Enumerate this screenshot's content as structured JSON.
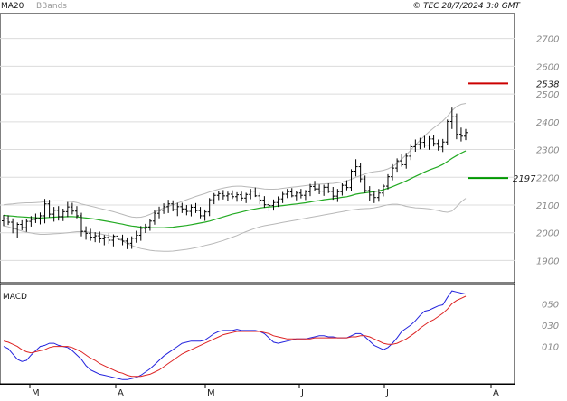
{
  "header": {
    "legend_ma": "MA20",
    "legend_bb": "BBands",
    "copyright": "© TEC 28/7/2024 3:0 GMT",
    "macd_label": "MACD"
  },
  "colors": {
    "ma20": "#22aa22",
    "bbands": "#b8b8b8",
    "resistance": "#cc0000",
    "support": "#009900",
    "candles": "#000000",
    "macd": "#2222dd",
    "signal": "#dd2222"
  },
  "chart_data": [
    {
      "type": "line",
      "title": "",
      "y_ticks": [
        1900,
        2000,
        2100,
        2200,
        2300,
        2400,
        2500,
        2600,
        2700
      ],
      "y_range": [
        1820,
        2790
      ],
      "x_labels": [
        "M",
        "A",
        "M",
        "J",
        "J",
        "A"
      ],
      "grid": true,
      "candles": [
        [
          2043,
          2064,
          2024,
          2050
        ],
        [
          2050,
          2063,
          2028,
          2038
        ],
        [
          2038,
          2052,
          1998,
          2016
        ],
        [
          2016,
          2037,
          1982,
          2030
        ],
        [
          2030,
          2045,
          2009,
          2018
        ],
        [
          2018,
          2048,
          2003,
          2041
        ],
        [
          2041,
          2060,
          2022,
          2048
        ],
        [
          2048,
          2069,
          2035,
          2052
        ],
        [
          2052,
          2073,
          2030,
          2061
        ],
        [
          2061,
          2122,
          2034,
          2104
        ],
        [
          2104,
          2119,
          2055,
          2067
        ],
        [
          2067,
          2093,
          2040,
          2081
        ],
        [
          2081,
          2096,
          2044,
          2058
        ],
        [
          2058,
          2087,
          2042,
          2076
        ],
        [
          2076,
          2111,
          2056,
          2093
        ],
        [
          2093,
          2108,
          2066,
          2078
        ],
        [
          2078,
          2096,
          2052,
          2061
        ],
        [
          2061,
          2072,
          1987,
          2005
        ],
        [
          2005,
          2023,
          1975,
          1998
        ],
        [
          1998,
          2014,
          1971,
          1984
        ],
        [
          1984,
          2002,
          1966,
          1989
        ],
        [
          1989,
          2004,
          1964,
          1978
        ],
        [
          1978,
          1992,
          1955,
          1983
        ],
        [
          1983,
          1999,
          1960,
          1973
        ],
        [
          1973,
          1994,
          1951,
          1988
        ],
        [
          1988,
          2010,
          1968,
          1976
        ],
        [
          1976,
          1993,
          1955,
          1970
        ],
        [
          1970,
          1983,
          1941,
          1962
        ],
        [
          1962,
          1987,
          1942,
          1980
        ],
        [
          1980,
          2007,
          1964,
          1991
        ],
        [
          1991,
          2024,
          1971,
          2016
        ],
        [
          2016,
          2032,
          1999,
          2021
        ],
        [
          2021,
          2049,
          2007,
          2042
        ],
        [
          2042,
          2083,
          2029,
          2070
        ],
        [
          2070,
          2094,
          2052,
          2081
        ],
        [
          2081,
          2106,
          2068,
          2094
        ],
        [
          2094,
          2119,
          2071,
          2104
        ],
        [
          2104,
          2117,
          2077,
          2083
        ],
        [
          2083,
          2108,
          2060,
          2094
        ],
        [
          2094,
          2108,
          2071,
          2086
        ],
        [
          2086,
          2100,
          2063,
          2077
        ],
        [
          2077,
          2102,
          2059,
          2092
        ],
        [
          2092,
          2107,
          2071,
          2080
        ],
        [
          2080,
          2093,
          2052,
          2061
        ],
        [
          2061,
          2084,
          2043,
          2075
        ],
        [
          2075,
          2125,
          2060,
          2119
        ],
        [
          2119,
          2143,
          2103,
          2135
        ],
        [
          2135,
          2152,
          2118,
          2141
        ],
        [
          2141,
          2154,
          2120,
          2133
        ],
        [
          2133,
          2148,
          2115,
          2139
        ],
        [
          2139,
          2153,
          2122,
          2130
        ],
        [
          2130,
          2146,
          2112,
          2137
        ],
        [
          2137,
          2148,
          2114,
          2125
        ],
        [
          2125,
          2144,
          2107,
          2138
        ],
        [
          2138,
          2158,
          2121,
          2150
        ],
        [
          2150,
          2163,
          2129,
          2133
        ],
        [
          2133,
          2144,
          2103,
          2118
        ],
        [
          2118,
          2132,
          2090,
          2101
        ],
        [
          2101,
          2114,
          2077,
          2098
        ],
        [
          2098,
          2120,
          2080,
          2109
        ],
        [
          2109,
          2131,
          2093,
          2122
        ],
        [
          2122,
          2147,
          2107,
          2139
        ],
        [
          2139,
          2158,
          2125,
          2147
        ],
        [
          2147,
          2161,
          2128,
          2133
        ],
        [
          2133,
          2152,
          2117,
          2143
        ],
        [
          2143,
          2158,
          2124,
          2135
        ],
        [
          2135,
          2154,
          2118,
          2148
        ],
        [
          2148,
          2176,
          2132,
          2167
        ],
        [
          2167,
          2187,
          2150,
          2158
        ],
        [
          2158,
          2174,
          2139,
          2150
        ],
        [
          2150,
          2173,
          2133,
          2164
        ],
        [
          2164,
          2178,
          2143,
          2149
        ],
        [
          2149,
          2165,
          2119,
          2132
        ],
        [
          2132,
          2158,
          2111,
          2148
        ],
        [
          2148,
          2178,
          2134,
          2171
        ],
        [
          2171,
          2189,
          2153,
          2163
        ],
        [
          2163,
          2229,
          2152,
          2222
        ],
        [
          2222,
          2265,
          2203,
          2238
        ],
        [
          2238,
          2252,
          2180,
          2194
        ],
        [
          2194,
          2206,
          2143,
          2152
        ],
        [
          2152,
          2168,
          2114,
          2136
        ],
        [
          2136,
          2151,
          2107,
          2127
        ],
        [
          2127,
          2158,
          2112,
          2143
        ],
        [
          2143,
          2175,
          2131,
          2168
        ],
        [
          2168,
          2211,
          2156,
          2202
        ],
        [
          2202,
          2247,
          2189,
          2233
        ],
        [
          2233,
          2268,
          2220,
          2259
        ],
        [
          2259,
          2283,
          2238,
          2245
        ],
        [
          2245,
          2288,
          2231,
          2276
        ],
        [
          2276,
          2320,
          2262,
          2310
        ],
        [
          2310,
          2336,
          2292,
          2318
        ],
        [
          2318,
          2342,
          2301,
          2326
        ],
        [
          2326,
          2349,
          2306,
          2316
        ],
        [
          2316,
          2348,
          2299,
          2338
        ],
        [
          2338,
          2351,
          2311,
          2322
        ],
        [
          2322,
          2336,
          2296,
          2309
        ],
        [
          2309,
          2338,
          2291,
          2327
        ],
        [
          2327,
          2408,
          2318,
          2401
        ],
        [
          2401,
          2451,
          2374,
          2418
        ],
        [
          2418,
          2430,
          2337,
          2355
        ],
        [
          2355,
          2379,
          2329,
          2348
        ],
        [
          2348,
          2374,
          2334,
          2361
        ]
      ],
      "ma20": [
        2063,
        2061,
        2060,
        2058,
        2057,
        2056,
        2055,
        2054,
        2053,
        2054,
        2055,
        2056,
        2057,
        2057,
        2058,
        2058,
        2057,
        2055,
        2053,
        2051,
        2049,
        2046,
        2043,
        2040,
        2037,
        2034,
        2031,
        2027,
        2024,
        2022,
        2020,
        2019,
        2018,
        2018,
        2018,
        2018,
        2019,
        2020,
        2022,
        2024,
        2026,
        2029,
        2032,
        2035,
        2038,
        2042,
        2047,
        2052,
        2057,
        2062,
        2067,
        2071,
        2075,
        2079,
        2083,
        2086,
        2089,
        2091,
        2093,
        2094,
        2096,
        2098,
        2100,
        2102,
        2104,
        2106,
        2108,
        2111,
        2114,
        2116,
        2119,
        2121,
        2123,
        2125,
        2128,
        2130,
        2134,
        2139,
        2142,
        2144,
        2146,
        2148,
        2151,
        2155,
        2160,
        2166,
        2173,
        2180,
        2187,
        2195,
        2203,
        2211,
        2219,
        2226,
        2232,
        2238,
        2246,
        2257,
        2268,
        2278,
        2287,
        2295
      ],
      "bb_upper": [
        2101,
        2103,
        2104,
        2106,
        2107,
        2108,
        2108,
        2109,
        2110,
        2112,
        2114,
        2115,
        2115,
        2115,
        2114,
        2112,
        2109,
        2104,
        2100,
        2096,
        2092,
        2088,
        2084,
        2080,
        2076,
        2071,
        2066,
        2061,
        2057,
        2055,
        2056,
        2060,
        2066,
        2074,
        2082,
        2089,
        2095,
        2101,
        2107,
        2113,
        2119,
        2125,
        2131,
        2136,
        2141,
        2147,
        2152,
        2157,
        2161,
        2164,
        2167,
        2168,
        2168,
        2166,
        2164,
        2162,
        2160,
        2158,
        2157,
        2157,
        2158,
        2160,
        2162,
        2164,
        2166,
        2168,
        2170,
        2172,
        2174,
        2175,
        2176,
        2177,
        2178,
        2180,
        2183,
        2187,
        2193,
        2200,
        2206,
        2212,
        2217,
        2220,
        2222,
        2225,
        2230,
        2238,
        2250,
        2265,
        2281,
        2298,
        2316,
        2333,
        2349,
        2364,
        2378,
        2390,
        2403,
        2420,
        2440,
        2455,
        2463,
        2466
      ],
      "bb_lower": [
        2025,
        2021,
        2016,
        2011,
        2006,
        2002,
        1999,
        1996,
        1994,
        1994,
        1995,
        1996,
        1997,
        1998,
        2000,
        2002,
        2004,
        2004,
        2003,
        2001,
        1999,
        1996,
        1993,
        1990,
        1985,
        1978,
        1970,
        1961,
        1954,
        1948,
        1943,
        1940,
        1937,
        1935,
        1934,
        1933,
        1933,
        1934,
        1936,
        1938,
        1940,
        1943,
        1946,
        1950,
        1954,
        1958,
        1962,
        1967,
        1972,
        1978,
        1984,
        1990,
        1997,
        2004,
        2010,
        2016,
        2021,
        2025,
        2028,
        2031,
        2034,
        2037,
        2040,
        2043,
        2046,
        2049,
        2052,
        2055,
        2058,
        2061,
        2064,
        2067,
        2070,
        2073,
        2076,
        2079,
        2082,
        2084,
        2086,
        2087,
        2088,
        2090,
        2093,
        2097,
        2101,
        2103,
        2103,
        2100,
        2095,
        2092,
        2090,
        2089,
        2088,
        2086,
        2083,
        2080,
        2076,
        2074,
        2078,
        2094,
        2111,
        2124
      ],
      "support_level": 2197,
      "support_label": "2197",
      "resistance_level": 2538,
      "resistance_label": "2538"
    },
    {
      "type": "line",
      "title": "MACD",
      "y_ticks": [
        0.1,
        0.3,
        0.5
      ],
      "y_tick_labels": [
        "010",
        "030",
        "050"
      ],
      "y_range": [
        -0.25,
        0.68
      ],
      "series": [
        {
          "name": "MACD",
          "values": [
            0.1,
            0.08,
            0.03,
            -0.02,
            -0.04,
            -0.03,
            0.02,
            0.06,
            0.1,
            0.11,
            0.13,
            0.13,
            0.11,
            0.1,
            0.09,
            0.06,
            0.02,
            -0.02,
            -0.08,
            -0.12,
            -0.14,
            -0.16,
            -0.17,
            -0.18,
            -0.19,
            -0.2,
            -0.21,
            -0.21,
            -0.2,
            -0.19,
            -0.17,
            -0.14,
            -0.11,
            -0.07,
            -0.03,
            0.01,
            0.04,
            0.07,
            0.1,
            0.13,
            0.14,
            0.15,
            0.15,
            0.15,
            0.16,
            0.19,
            0.22,
            0.24,
            0.25,
            0.25,
            0.25,
            0.26,
            0.25,
            0.25,
            0.25,
            0.25,
            0.24,
            0.22,
            0.18,
            0.14,
            0.13,
            0.14,
            0.15,
            0.16,
            0.17,
            0.17,
            0.17,
            0.18,
            0.19,
            0.2,
            0.2,
            0.19,
            0.19,
            0.18,
            0.18,
            0.18,
            0.2,
            0.22,
            0.22,
            0.19,
            0.15,
            0.11,
            0.09,
            0.07,
            0.09,
            0.13,
            0.18,
            0.24,
            0.27,
            0.3,
            0.34,
            0.39,
            0.43,
            0.44,
            0.46,
            0.48,
            0.49,
            0.56,
            0.62,
            0.61,
            0.6,
            0.59
          ]
        },
        {
          "name": "Signal",
          "values": [
            0.15,
            0.14,
            0.12,
            0.1,
            0.07,
            0.05,
            0.04,
            0.05,
            0.06,
            0.07,
            0.09,
            0.1,
            0.1,
            0.1,
            0.1,
            0.09,
            0.07,
            0.05,
            0.02,
            -0.01,
            -0.03,
            -0.06,
            -0.08,
            -0.1,
            -0.12,
            -0.14,
            -0.15,
            -0.17,
            -0.18,
            -0.18,
            -0.18,
            -0.17,
            -0.16,
            -0.14,
            -0.12,
            -0.09,
            -0.06,
            -0.03,
            0,
            0.03,
            0.05,
            0.07,
            0.09,
            0.11,
            0.13,
            0.15,
            0.17,
            0.19,
            0.21,
            0.22,
            0.23,
            0.24,
            0.24,
            0.24,
            0.24,
            0.24,
            0.24,
            0.23,
            0.22,
            0.2,
            0.19,
            0.18,
            0.17,
            0.17,
            0.17,
            0.17,
            0.17,
            0.17,
            0.18,
            0.18,
            0.18,
            0.18,
            0.18,
            0.18,
            0.18,
            0.18,
            0.19,
            0.19,
            0.2,
            0.2,
            0.19,
            0.17,
            0.15,
            0.13,
            0.12,
            0.12,
            0.13,
            0.15,
            0.17,
            0.2,
            0.23,
            0.27,
            0.3,
            0.33,
            0.35,
            0.38,
            0.41,
            0.45,
            0.5,
            0.53,
            0.55,
            0.57
          ]
        }
      ]
    }
  ]
}
